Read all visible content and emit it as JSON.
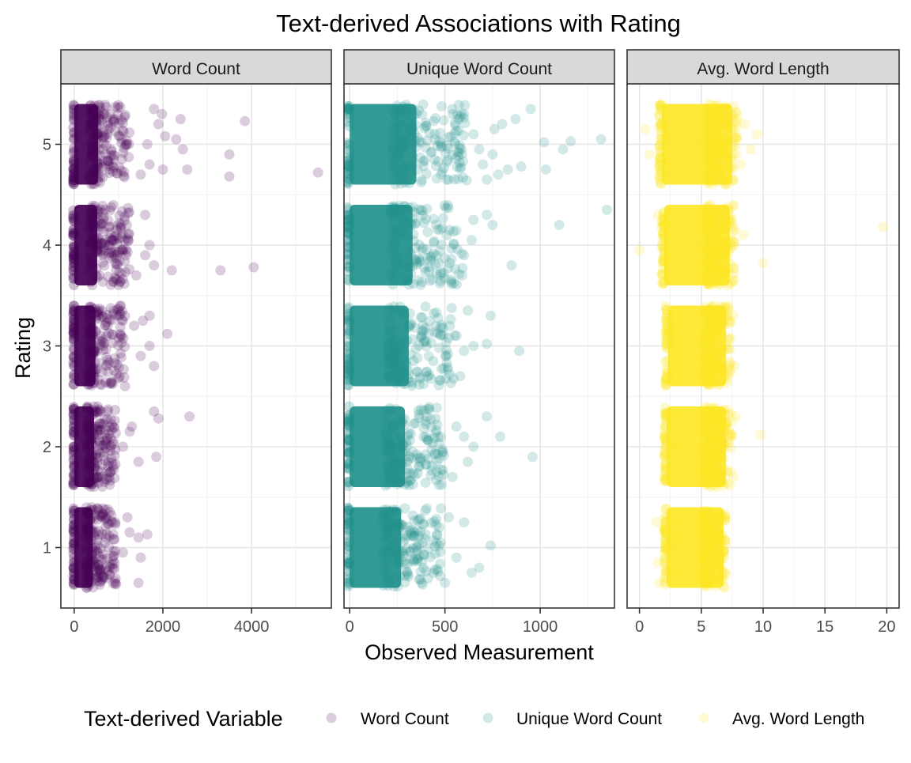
{
  "chart_data": {
    "type": "scatter",
    "title": "Text-derived Associations with Rating",
    "xlabel": "Observed Measurement",
    "ylabel": "Rating",
    "legend": {
      "title": "Text-derived Variable",
      "position": "bottom",
      "entries": [
        {
          "label": "Word Count",
          "color": "#440154"
        },
        {
          "label": "Unique Word Count",
          "color": "#21918C"
        },
        {
          "label": "Avg. Word Length",
          "color": "#FDE725"
        }
      ]
    },
    "y_ticks": [
      "1",
      "2",
      "3",
      "4",
      "5"
    ],
    "y_range": [
      0.4,
      5.6
    ],
    "jitter": 0.4,
    "panels": [
      {
        "name": "Word Count",
        "color": "#440154",
        "x_range": [
          -300,
          5800
        ],
        "x_ticks": [
          {
            "value": 0,
            "label": "0"
          },
          {
            "value": 2000,
            "label": "2000"
          },
          {
            "value": 4000,
            "label": "4000"
          }
        ],
        "x_minor": [
          1000,
          3000,
          5000
        ],
        "ratings": [
          {
            "rating": 5,
            "core": [
              0,
              540
            ],
            "tail_max": 1250,
            "outliers": [
              [
                3850,
                0.23
              ],
              [
                3500,
                -0.1
              ],
              [
                5500,
                -0.28
              ],
              [
                3500,
                -0.32
              ],
              [
                2400,
                0.25
              ],
              [
                2550,
                -0.25
              ],
              [
                1980,
                0.3
              ],
              [
                2050,
                0.08
              ],
              [
                2300,
                0.05
              ],
              [
                2450,
                -0.05
              ],
              [
                1900,
                0.2
              ],
              [
                1700,
                -0.2
              ],
              [
                2000,
                -0.25
              ],
              [
                1500,
                -0.3
              ],
              [
                1800,
                0.35
              ],
              [
                1650,
                0.0
              ]
            ]
          },
          {
            "rating": 4,
            "core": [
              0,
              520
            ],
            "tail_max": 1250,
            "outliers": [
              [
                4050,
                -0.22
              ],
              [
                3300,
                -0.25
              ],
              [
                2200,
                -0.25
              ],
              [
                1600,
                0.3
              ],
              [
                1700,
                0.0
              ],
              [
                1800,
                -0.2
              ],
              [
                1600,
                -0.1
              ],
              [
                1400,
                -0.3
              ]
            ]
          },
          {
            "rating": 3,
            "core": [
              0,
              480
            ],
            "tail_max": 1150,
            "outliers": [
              [
                2100,
                0.12
              ],
              [
                1700,
                0.3
              ],
              [
                1700,
                0.0
              ],
              [
                1800,
                -0.2
              ],
              [
                1550,
                0.25
              ],
              [
                1350,
                0.2
              ],
              [
                1500,
                -0.1
              ]
            ]
          },
          {
            "rating": 2,
            "core": [
              0,
              450
            ],
            "tail_max": 950,
            "outliers": [
              [
                2600,
                0.3
              ],
              [
                1900,
                0.28
              ],
              [
                1800,
                0.35
              ],
              [
                1850,
                -0.1
              ],
              [
                1450,
                -0.15
              ],
              [
                1250,
                0.15
              ],
              [
                1100,
                0.0
              ],
              [
                1300,
                0.2
              ]
            ]
          },
          {
            "rating": 1,
            "core": [
              0,
              420
            ],
            "tail_max": 950,
            "outliers": [
              [
                1650,
                0.13
              ],
              [
                1450,
                0.1
              ],
              [
                1500,
                -0.1
              ],
              [
                1450,
                -0.35
              ],
              [
                1250,
                0.15
              ],
              [
                1100,
                -0.05
              ],
              [
                1200,
                0.3
              ]
            ]
          }
        ]
      },
      {
        "name": "Unique Word Count",
        "color": "#21918C",
        "x_range": [
          -30,
          1390
        ],
        "x_ticks": [
          {
            "value": 0,
            "label": "0"
          },
          {
            "value": 500,
            "label": "500"
          },
          {
            "value": 1000,
            "label": "1000"
          }
        ],
        "x_minor": [
          250,
          750,
          1250
        ],
        "ratings": [
          {
            "rating": 5,
            "core": [
              0,
              350
            ],
            "tail_max": 620,
            "outliers": [
              [
                1320,
                0.05
              ],
              [
                1120,
                -0.05
              ],
              [
                1160,
                0.03
              ],
              [
                1020,
                0.02
              ],
              [
                950,
                0.35
              ],
              [
                870,
                0.25
              ],
              [
                800,
                0.2
              ],
              [
                760,
                0.15
              ],
              [
                830,
                -0.25
              ],
              [
                750,
                -0.1
              ],
              [
                700,
                -0.2
              ],
              [
                650,
                0.1
              ],
              [
                600,
                0.3
              ],
              [
                1030,
                -0.25
              ],
              [
                900,
                -0.22
              ],
              [
                780,
                -0.3
              ],
              [
                720,
                -0.35
              ],
              [
                680,
                -0.05
              ]
            ]
          },
          {
            "rating": 4,
            "core": [
              0,
              330
            ],
            "tail_max": 600,
            "outliers": [
              [
                1350,
                0.35
              ],
              [
                1100,
                0.2
              ],
              [
                850,
                -0.2
              ],
              [
                720,
                0.3
              ],
              [
                750,
                0.2
              ],
              [
                650,
                0.25
              ],
              [
                600,
                -0.1
              ],
              [
                640,
                0.05
              ],
              [
                590,
                -0.3
              ]
            ]
          },
          {
            "rating": 3,
            "core": [
              0,
              310
            ],
            "tail_max": 560,
            "outliers": [
              [
                890,
                -0.05
              ],
              [
                740,
                0.3
              ],
              [
                720,
                0.02
              ],
              [
                650,
                0.0
              ],
              [
                600,
                -0.05
              ],
              [
                560,
                0.1
              ],
              [
                620,
                0.35
              ],
              [
                580,
                -0.3
              ]
            ]
          },
          {
            "rating": 2,
            "core": [
              0,
              290
            ],
            "tail_max": 500,
            "outliers": [
              [
                960,
                -0.1
              ],
              [
                790,
                0.1
              ],
              [
                720,
                0.3
              ],
              [
                650,
                0.0
              ],
              [
                620,
                -0.15
              ],
              [
                600,
                0.1
              ],
              [
                560,
                0.2
              ],
              [
                540,
                -0.3
              ]
            ]
          },
          {
            "rating": 1,
            "core": [
              0,
              270
            ],
            "tail_max": 480,
            "outliers": [
              [
                740,
                0.02
              ],
              [
                680,
                -0.2
              ],
              [
                640,
                -0.25
              ],
              [
                600,
                0.25
              ],
              [
                560,
                -0.1
              ],
              [
                520,
                0.3
              ],
              [
                500,
                -0.35
              ],
              [
                470,
                0.2
              ]
            ]
          }
        ]
      },
      {
        "name": "Avg. Word Length",
        "color": "#FDE725",
        "x_range": [
          -1,
          21
        ],
        "x_ticks": [
          {
            "value": 0,
            "label": "0"
          },
          {
            "value": 5,
            "label": "5"
          },
          {
            "value": 10,
            "label": "10"
          },
          {
            "value": 15,
            "label": "15"
          },
          {
            "value": 20,
            "label": "20"
          }
        ],
        "x_minor": [
          2.5,
          7.5,
          12.5,
          17.5
        ],
        "ratings": [
          {
            "rating": 5,
            "core": [
              1.8,
              7.5
            ],
            "tail_max": 7.9,
            "outliers": [
              [
                9.5,
                0.1
              ],
              [
                9.0,
                -0.05
              ],
              [
                8.5,
                0.2
              ],
              [
                0.5,
                0.15
              ],
              [
                0.8,
                -0.1
              ],
              [
                8.2,
                -0.2
              ]
            ]
          },
          {
            "rating": 4,
            "core": [
              2.0,
              7.3
            ],
            "tail_max": 7.7,
            "outliers": [
              [
                19.7,
                0.18
              ],
              [
                10.0,
                -0.18
              ],
              [
                0.0,
                -0.05
              ],
              [
                8.4,
                0.1
              ],
              [
                1.5,
                0.3
              ]
            ]
          },
          {
            "rating": 3,
            "core": [
              2.3,
              7.0
            ],
            "tail_max": 7.4,
            "outliers": [
              [
                7.6,
                0.3
              ],
              [
                7.7,
                -0.2
              ]
            ]
          },
          {
            "rating": 2,
            "core": [
              2.2,
              7.0
            ],
            "tail_max": 7.5,
            "outliers": [
              [
                9.8,
                0.12
              ],
              [
                7.8,
                0.3
              ],
              [
                7.6,
                -0.3
              ]
            ]
          },
          {
            "rating": 1,
            "core": [
              2.2,
              6.8
            ],
            "tail_max": 7.0,
            "outliers": [
              [
                1.4,
                0.25
              ],
              [
                1.5,
                -0.15
              ],
              [
                1.6,
                -0.35
              ]
            ]
          }
        ]
      }
    ]
  }
}
